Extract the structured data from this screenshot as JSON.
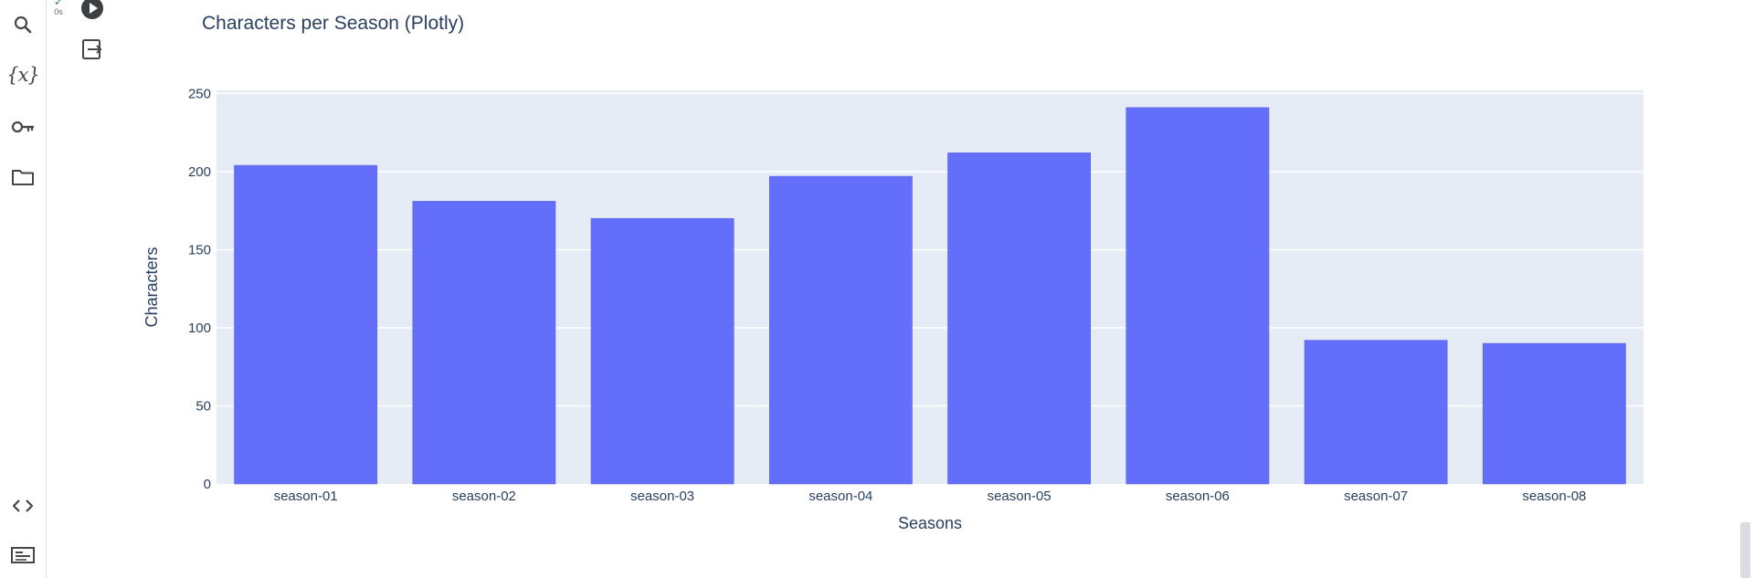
{
  "cell": {
    "status_check": "✓",
    "status_time": "0s"
  },
  "sidebar": {
    "icons": [
      "search-icon",
      "variables-icon",
      "key-icon",
      "folder-icon",
      "code-icon",
      "terminal-icon"
    ],
    "variables_glyph": "{x}"
  },
  "colors": {
    "bar": "#636efa",
    "plot_bg": "#e5ecf6",
    "text": "#2a3f5f",
    "grid": "#ffffff"
  },
  "chart_data": {
    "type": "bar",
    "title": "Characters per Season (Plotly)",
    "xlabel": "Seasons",
    "ylabel": "Characters",
    "categories": [
      "season-01",
      "season-02",
      "season-03",
      "season-04",
      "season-05",
      "season-06",
      "season-07",
      "season-08"
    ],
    "values": [
      204,
      181,
      170,
      197,
      212,
      241,
      92,
      90
    ],
    "ylim": [
      0,
      252
    ],
    "yticks": [
      0,
      50,
      100,
      150,
      200,
      250
    ],
    "grid": true
  }
}
